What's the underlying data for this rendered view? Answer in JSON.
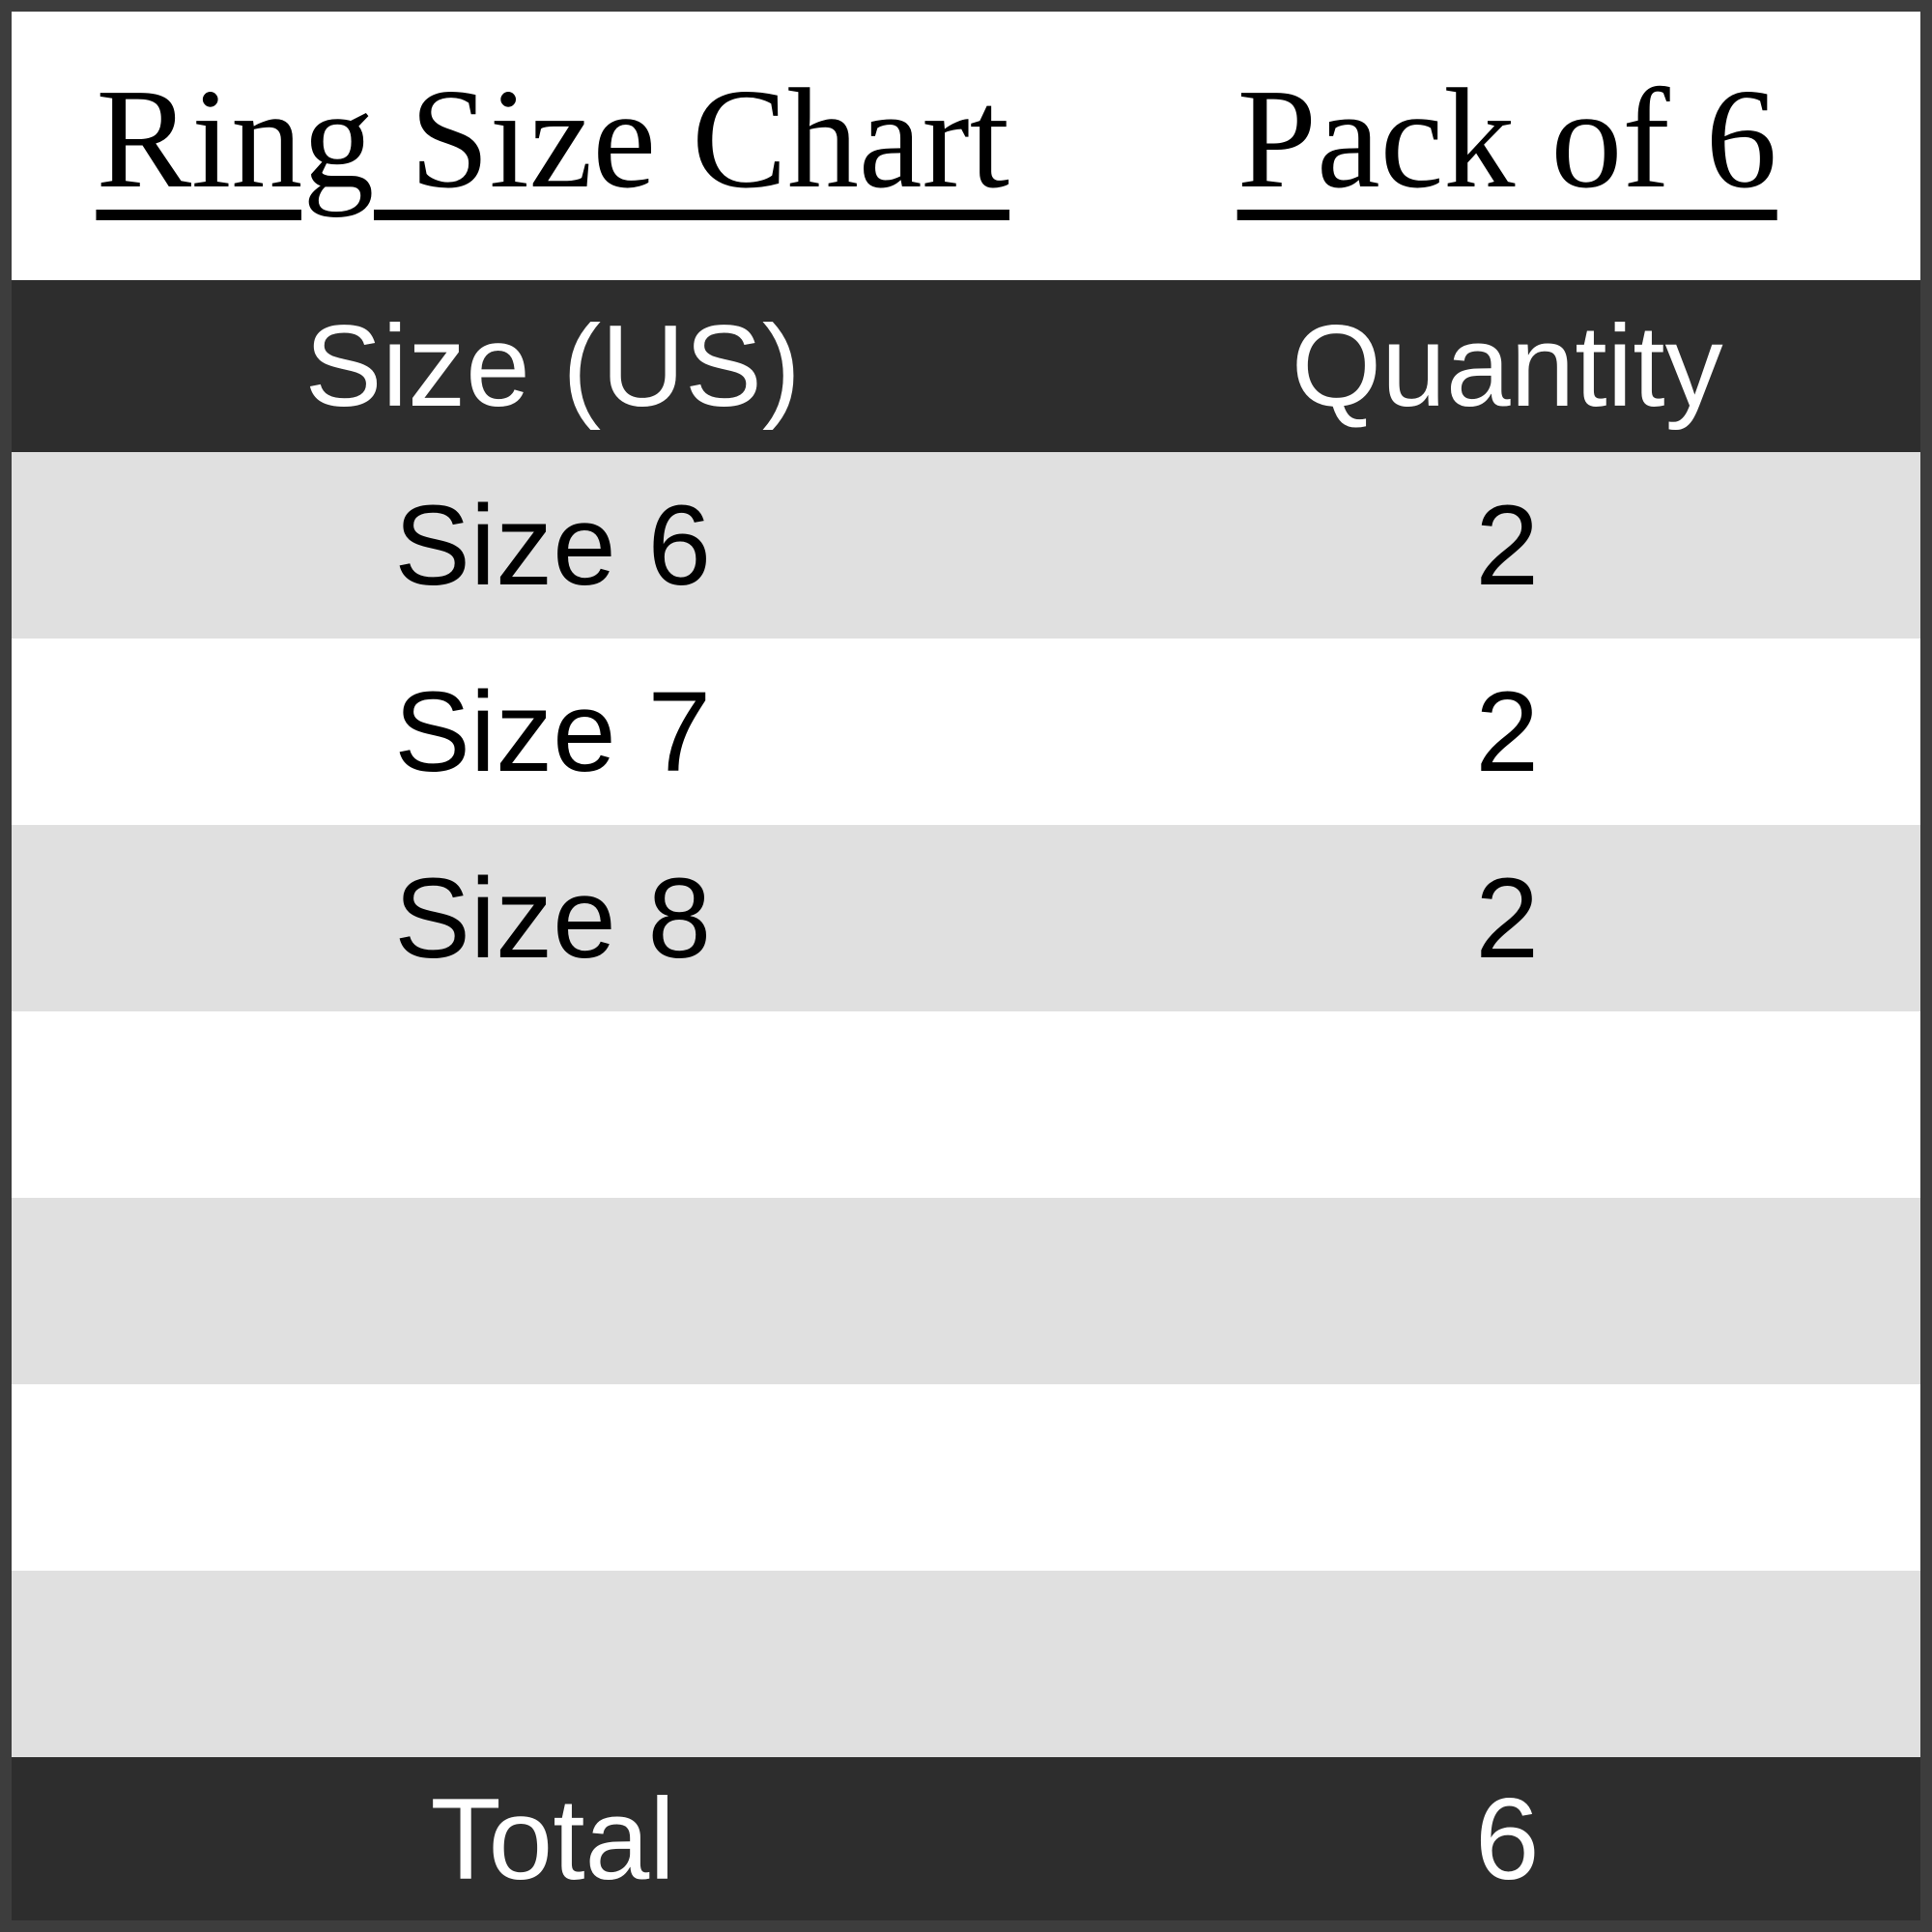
{
  "titles": {
    "left": "Ring Size Chart",
    "right": "Pack of 6"
  },
  "table": {
    "columns": [
      "Size (US)",
      "Quantity"
    ],
    "rows": [
      {
        "size": "Size 6",
        "qty": "2"
      },
      {
        "size": "Size 7",
        "qty": "2"
      },
      {
        "size": "Size 8",
        "qty": "2"
      },
      {
        "size": "",
        "qty": ""
      },
      {
        "size": "",
        "qty": ""
      },
      {
        "size": "",
        "qty": ""
      },
      {
        "size": "",
        "qty": ""
      }
    ],
    "footer": {
      "label": "Total",
      "value": "6"
    }
  },
  "colors": {
    "header_bg": "#2d2d2d",
    "header_text": "#ffffff",
    "stripe_bg": "#e0e0e0",
    "row_bg": "#ffffff",
    "text": "#000000",
    "frame_border": "#3d3d3d"
  },
  "chart_data": {
    "type": "table",
    "title": "Ring Size Chart",
    "subtitle": "Pack of 6",
    "columns": [
      "Size (US)",
      "Quantity"
    ],
    "rows": [
      [
        "Size 6",
        2
      ],
      [
        "Size 7",
        2
      ],
      [
        "Size 8",
        2
      ]
    ],
    "total_row": [
      "Total",
      6
    ],
    "layout": "zebra-striped table, dark header and footer bands, no vertical gridlines"
  }
}
